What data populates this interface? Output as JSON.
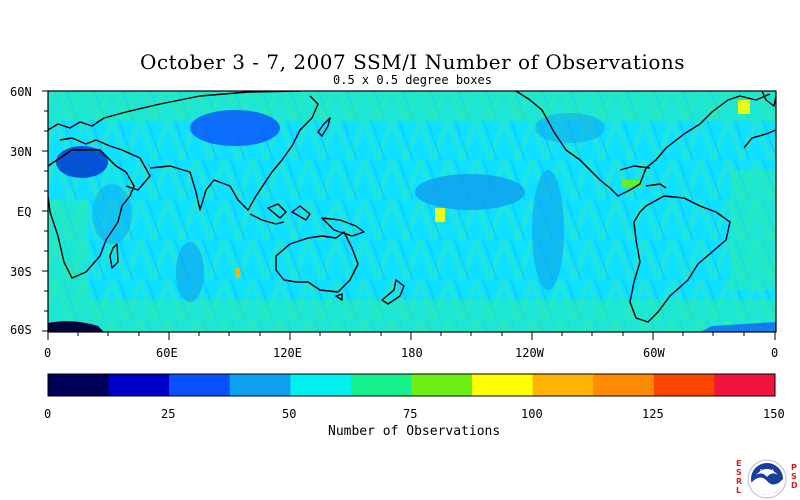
{
  "title": "October 3 - 7, 2007 SSM/I Number of Observations",
  "subtitle": "0.5 x 0.5 degree boxes",
  "lat_labels": [
    "60N",
    "30N",
    "EQ",
    "30S",
    "60S"
  ],
  "lon_labels": [
    "0",
    "60E",
    "120E",
    "180",
    "120W",
    "60W",
    "0"
  ],
  "colorbar": {
    "label": "Number of Observations",
    "tick_labels": [
      "0",
      "25",
      "50",
      "75",
      "100",
      "125",
      "150"
    ],
    "colors": [
      "#00005a",
      "#0000cc",
      "#0a50ff",
      "#0ea0f0",
      "#00f0f0",
      "#14f08c",
      "#6cf014",
      "#ffff00",
      "#ffb400",
      "#ff8c00",
      "#ff4600",
      "#f0143c"
    ]
  },
  "logo": {
    "left_letters": [
      "E",
      "S",
      "R",
      "L"
    ],
    "right_letters": [
      "P",
      "S",
      "D"
    ],
    "emblem_text": "NOAA"
  }
}
